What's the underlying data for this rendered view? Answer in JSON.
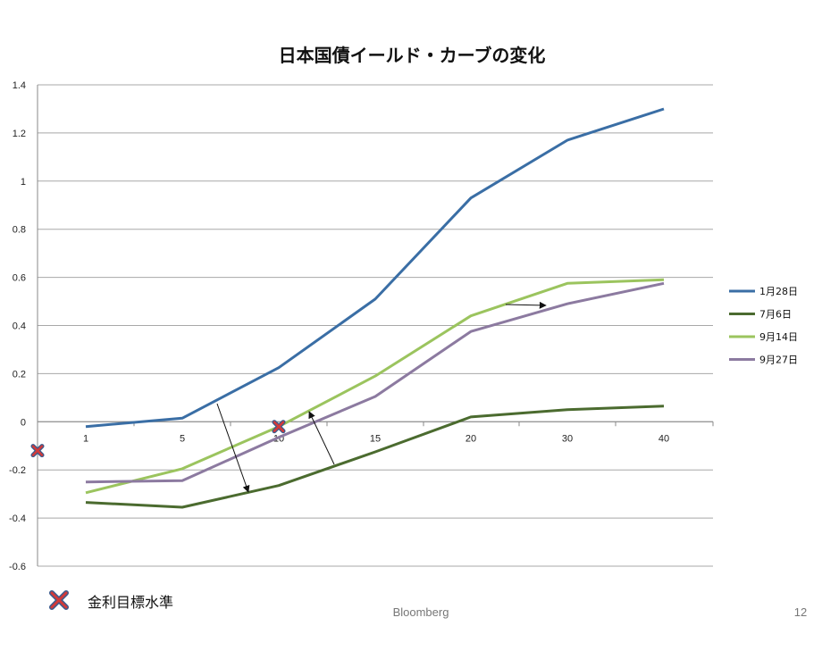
{
  "chart_data": {
    "type": "line",
    "title": "日本国債イールド・カーブの変化",
    "xlabel": "",
    "ylabel": "",
    "categories": [
      "1",
      "5",
      "10",
      "15",
      "20",
      "30",
      "40"
    ],
    "ylim": [
      -0.6,
      1.4
    ],
    "yticks": [
      "1.4",
      "1.2",
      "1",
      "0.8",
      "0.6",
      "0.4",
      "0.2",
      "0",
      "-0.2",
      "-0.4",
      "-0.6"
    ],
    "grid": true,
    "legend_position": "right",
    "series": [
      {
        "name": "1月28日",
        "color": "#3a6ea5",
        "values": [
          -0.02,
          0.015,
          0.225,
          0.51,
          0.93,
          1.17,
          1.3
        ]
      },
      {
        "name": "7月6日",
        "color": "#4b6b2f",
        "values": [
          -0.335,
          -0.355,
          -0.265,
          -0.125,
          0.02,
          0.05,
          0.065
        ]
      },
      {
        "name": "9月14日",
        "color": "#9bc45e",
        "values": [
          -0.295,
          -0.195,
          -0.02,
          0.19,
          0.44,
          0.575,
          0.59
        ]
      },
      {
        "name": "9月27日",
        "color": "#8c7aa0",
        "values": [
          -0.25,
          -0.245,
          -0.065,
          0.105,
          0.375,
          0.49,
          0.575
        ]
      }
    ],
    "target_markers": [
      {
        "label": "金利目標水準",
        "x": "10",
        "y": -0.02
      },
      {
        "label": "金利目標水準",
        "x": "axis",
        "y": -0.12
      }
    ]
  },
  "footer": {
    "legend_label": "金利目標水準",
    "source": "Bloomberg",
    "page": "12"
  }
}
